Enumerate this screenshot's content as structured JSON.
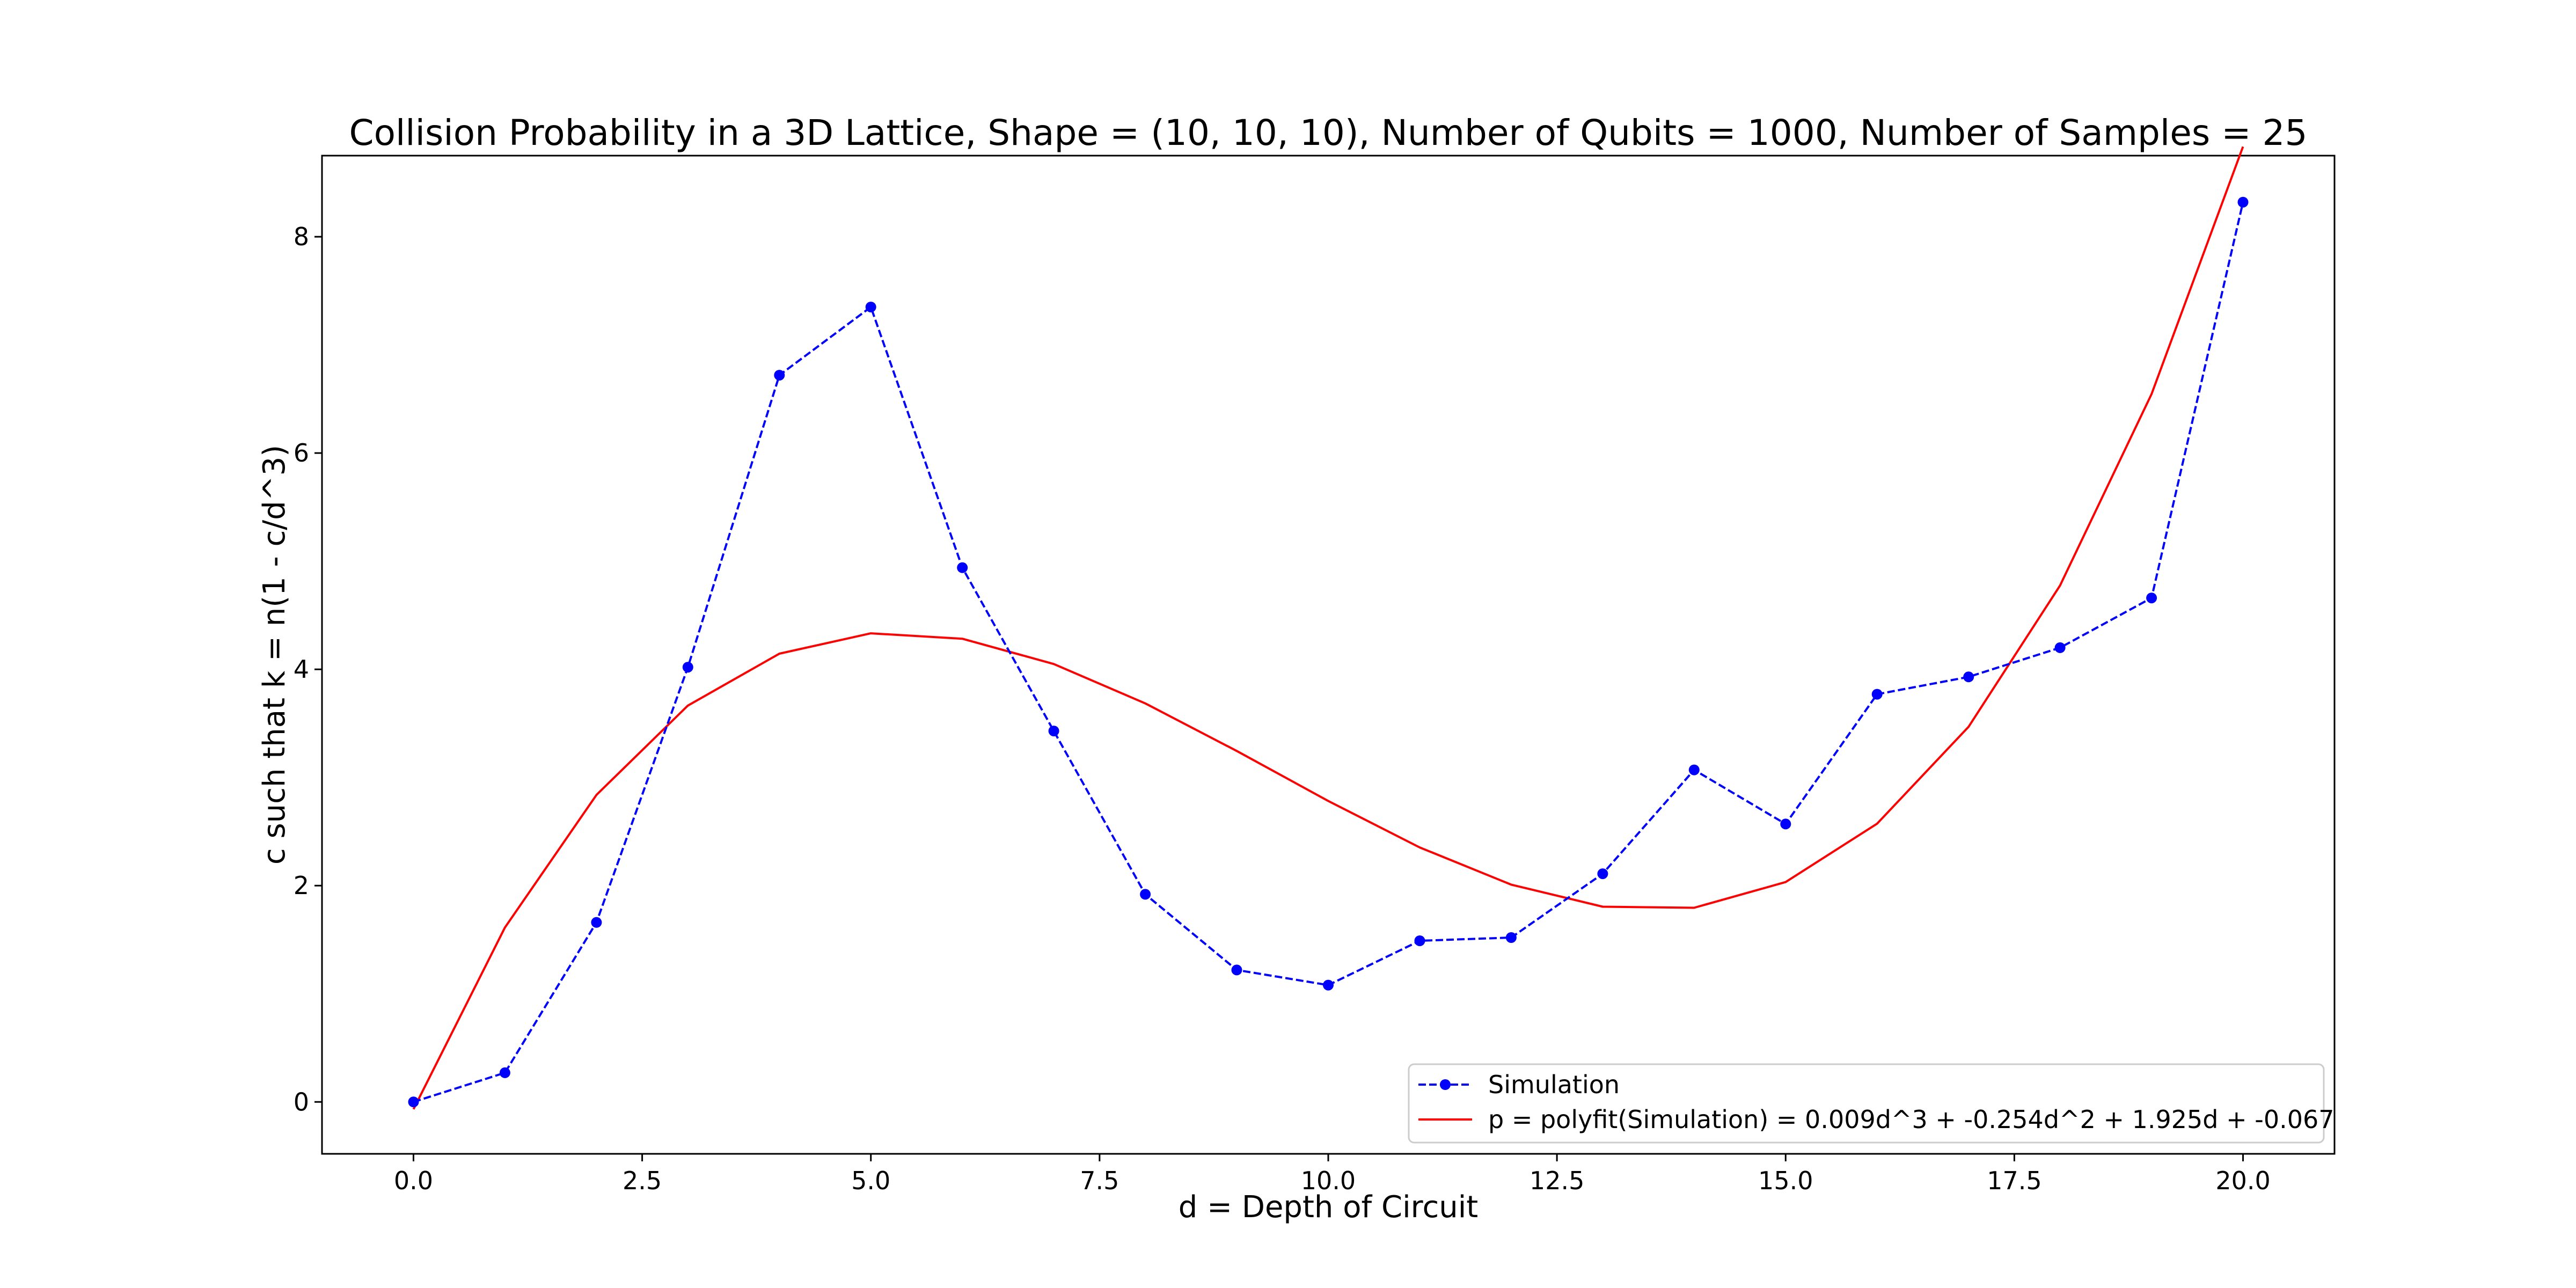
{
  "chart_data": {
    "type": "line",
    "title": "Collision Probability in a 3D Lattice, Shape = (10, 10, 10), Number of Qubits = 1000, Number of Samples = 25",
    "xlabel": "d = Depth of Circuit",
    "ylabel": "c such that k = n(1 - c/d^3)",
    "xlim": [
      -1.0,
      21.0
    ],
    "ylim": [
      -0.48,
      8.75
    ],
    "xticks": [
      0.0,
      2.5,
      5.0,
      7.5,
      10.0,
      12.5,
      15.0,
      17.5,
      20.0
    ],
    "xtick_labels": [
      "0.0",
      "2.5",
      "5.0",
      "7.5",
      "10.0",
      "12.5",
      "15.0",
      "17.5",
      "20.0"
    ],
    "yticks": [
      0,
      2,
      4,
      6,
      8
    ],
    "ytick_labels": [
      "0",
      "2",
      "4",
      "6",
      "8"
    ],
    "grid": false,
    "legend_position": "lower right",
    "x": [
      0,
      1,
      2,
      3,
      4,
      5,
      6,
      7,
      8,
      9,
      10,
      11,
      12,
      13,
      14,
      15,
      16,
      17,
      18,
      19,
      20
    ],
    "series": [
      {
        "name": "Simulation",
        "color": "#0000ff",
        "style": "dashed",
        "marker": "circle",
        "values": [
          0.0,
          0.27,
          1.66,
          4.02,
          6.72,
          7.35,
          4.94,
          3.43,
          1.92,
          1.22,
          1.08,
          1.49,
          1.52,
          2.11,
          3.07,
          2.57,
          3.77,
          3.93,
          4.2,
          4.66,
          8.32
        ]
      },
      {
        "name": "p = polyfit(Simulation) = 0.009d^3 + -0.254d^2 + 1.925d + -0.067",
        "color": "#ff0000",
        "style": "solid",
        "marker": "none",
        "values": [
          -0.067,
          1.613,
          2.839,
          3.665,
          4.145,
          4.333,
          4.283,
          4.049,
          3.685,
          3.245,
          2.783,
          2.353,
          2.009,
          1.805,
          1.795,
          2.033,
          2.573,
          3.469,
          4.775,
          6.545,
          8.833
        ]
      }
    ]
  }
}
